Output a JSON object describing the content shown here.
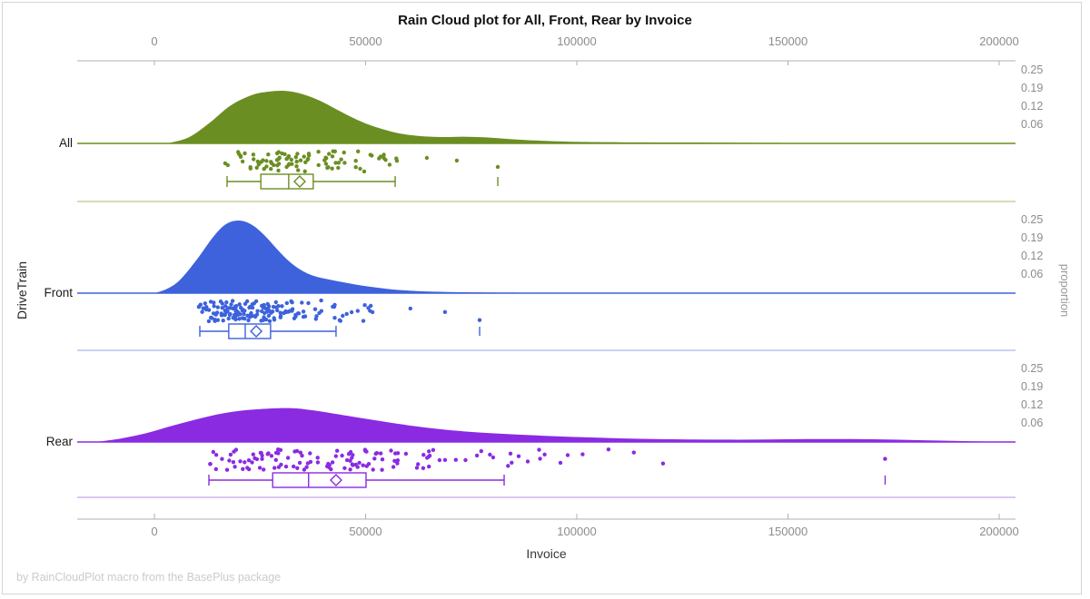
{
  "title": "Rain Cloud plot for All, Front, Rear by Invoice",
  "footer": "by RainCloudPlot macro from the BasePlus package",
  "x_axis": {
    "label": "Invoice",
    "range": [
      0,
      200000
    ],
    "ticks": [
      0,
      50000,
      100000,
      150000,
      200000
    ],
    "tick_labels": [
      "0",
      "50000",
      "100000",
      "150000",
      "200000"
    ]
  },
  "y_axis_left": {
    "label": "DriveTrain",
    "categories": [
      "All",
      "Front",
      "Rear"
    ]
  },
  "y_axis_right": {
    "label": "proportion",
    "tick_values": [
      0.25,
      0.19,
      0.12,
      0.06
    ],
    "tick_labels": [
      "0.25",
      "0.19",
      "0.12",
      "0.06"
    ]
  },
  "colors": {
    "axis_line": "#b0b0b0",
    "tick_text": "#8c8c8c"
  },
  "chart_data": {
    "type": "raincloud",
    "x_variable": "Invoice",
    "group_variable": "DriveTrain",
    "series": [
      {
        "name": "All",
        "color": "#6B8E23",
        "separator_color": "#c3d39a",
        "density": [
          [
            3000,
            0
          ],
          [
            8000,
            0.02
          ],
          [
            13000,
            0.07
          ],
          [
            18000,
            0.13
          ],
          [
            23000,
            0.166
          ],
          [
            27000,
            0.178
          ],
          [
            31000,
            0.181
          ],
          [
            35000,
            0.17
          ],
          [
            39000,
            0.148
          ],
          [
            43000,
            0.118
          ],
          [
            47000,
            0.088
          ],
          [
            51000,
            0.063
          ],
          [
            55000,
            0.045
          ],
          [
            59000,
            0.032
          ],
          [
            63000,
            0.025
          ],
          [
            68000,
            0.022
          ],
          [
            73000,
            0.023
          ],
          [
            78000,
            0.021
          ],
          [
            83000,
            0.016
          ],
          [
            90000,
            0.01
          ],
          [
            98000,
            0.006
          ],
          [
            110000,
            0.004
          ],
          [
            125000,
            0.003
          ],
          [
            145000,
            0.002
          ],
          [
            170000,
            0.001
          ],
          [
            198000,
            0
          ]
        ],
        "box": {
          "whisker_low": 17200,
          "q1": 25200,
          "median": 31800,
          "mean": 34400,
          "q3": 37600,
          "whisker_high": 57000,
          "outliers": [
            81300
          ]
        },
        "rain": {
          "n": 90,
          "seed": 3,
          "range": [
            16000,
            58000
          ],
          "extra": [
            64500,
            71600,
            81300
          ]
        }
      },
      {
        "name": "Front",
        "color": "#3D62DB",
        "separator_color": "#b9c6ee",
        "density": [
          [
            0,
            0
          ],
          [
            3000,
            0.015
          ],
          [
            6000,
            0.045
          ],
          [
            10000,
            0.115
          ],
          [
            14000,
            0.195
          ],
          [
            17000,
            0.238
          ],
          [
            20000,
            0.25
          ],
          [
            23000,
            0.236
          ],
          [
            26000,
            0.2
          ],
          [
            29000,
            0.152
          ],
          [
            32000,
            0.108
          ],
          [
            35000,
            0.077
          ],
          [
            38000,
            0.058
          ],
          [
            42000,
            0.045
          ],
          [
            46000,
            0.034
          ],
          [
            50000,
            0.024
          ],
          [
            55000,
            0.015
          ],
          [
            60000,
            0.009
          ],
          [
            66000,
            0.005
          ],
          [
            74000,
            0.003
          ],
          [
            84000,
            0.002
          ],
          [
            95000,
            0.001
          ],
          [
            110000,
            0
          ]
        ],
        "box": {
          "whisker_low": 10750,
          "q1": 17600,
          "median": 21500,
          "mean": 24100,
          "q3": 27500,
          "whisker_high": 43000,
          "outliers": [
            77000
          ]
        },
        "rain": {
          "n": 158,
          "seed": 11,
          "range": [
            10500,
            52000
          ],
          "extra": [
            60600,
            68800,
            77000
          ]
        }
      },
      {
        "name": "Rear",
        "color": "#8A2BE2",
        "separator_color": "#d4b3ef",
        "density": [
          [
            -14000,
            0
          ],
          [
            -8000,
            0.012
          ],
          [
            -2000,
            0.03
          ],
          [
            4000,
            0.055
          ],
          [
            10000,
            0.078
          ],
          [
            16000,
            0.098
          ],
          [
            22000,
            0.11
          ],
          [
            28000,
            0.1155
          ],
          [
            33000,
            0.116
          ],
          [
            38000,
            0.108
          ],
          [
            44000,
            0.094
          ],
          [
            50000,
            0.08
          ],
          [
            57000,
            0.064
          ],
          [
            64000,
            0.05
          ],
          [
            72000,
            0.038
          ],
          [
            80000,
            0.03
          ],
          [
            88000,
            0.024
          ],
          [
            96000,
            0.019
          ],
          [
            105000,
            0.015
          ],
          [
            115000,
            0.011
          ],
          [
            125000,
            0.009
          ],
          [
            135000,
            0.008
          ],
          [
            145000,
            0.0085
          ],
          [
            155000,
            0.01
          ],
          [
            165000,
            0.01
          ],
          [
            175000,
            0.008
          ],
          [
            185000,
            0.005
          ],
          [
            195000,
            0.002
          ],
          [
            203000,
            0
          ]
        ],
        "box": {
          "whisker_low": 12900,
          "q1": 28000,
          "median": 36500,
          "mean": 43000,
          "q3": 50100,
          "whisker_high": 82800,
          "outliers": [
            173000
          ]
        },
        "rain": {
          "n": 128,
          "seed": 27,
          "range": [
            13000,
            102000
          ],
          "extra": [
            107500,
            113500,
            120400,
            173000
          ]
        }
      }
    ]
  }
}
